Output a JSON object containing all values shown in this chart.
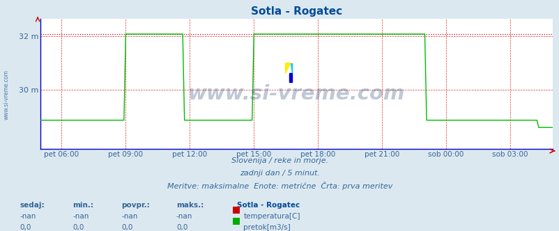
{
  "title": "Sotla - Rogatec",
  "title_color": "#004c99",
  "fig_bg": "#dce8f0",
  "plot_bg": "#ffffff",
  "grid_color": "#cc0000",
  "line_green": "#00bb00",
  "axis_color": "#0000cc",
  "tick_color": "#336699",
  "ylim": [
    27.8,
    32.65
  ],
  "xlim": [
    0,
    288
  ],
  "ytick_vals": [
    30.0,
    32.0
  ],
  "ytick_labels": [
    "30 m",
    "32 m"
  ],
  "xtick_pos": [
    12,
    48,
    84,
    120,
    156,
    192,
    228,
    264
  ],
  "xtick_labels": [
    "pet 06:00",
    "pet 09:00",
    "pet 12:00",
    "pet 15:00",
    "pet 18:00",
    "pet 21:00",
    "sob 00:00",
    "sob 03:00"
  ],
  "green_base": 28.87,
  "green_high": 32.07,
  "green_end": 28.6,
  "spike1_start": 48,
  "spike1_end": 80,
  "spike2_start": 120,
  "spike2_end": 192,
  "spike3_start": 192,
  "spike3_end": 216,
  "drop_start": 280,
  "watermark": "www.si-vreme.com",
  "watermark_color": "#1a3a6a",
  "watermark_alpha": 0.28,
  "side_label": "www.si-vreme.com",
  "side_label_color": "#5577aa",
  "sub1": "Slovenija / reke in morje.",
  "sub2": "zadnji dan / 5 minut.",
  "sub3": "Meritve: maksimalne  Enote: metrične  Črta: prva meritev",
  "sub_color": "#336699",
  "tbl_headers": [
    "sedaj:",
    "min.:",
    "povpr.:",
    "maks.:"
  ],
  "tbl_r1": [
    "-nan",
    "-nan",
    "-nan",
    "-nan"
  ],
  "tbl_r2": [
    "0,0",
    "0,0",
    "0,0",
    "0,0"
  ],
  "tbl_color": "#336699",
  "leg_title": "Sotla - Rogatec",
  "leg_color": "#004c99",
  "leg_labels": [
    "temperatura[C]",
    "pretok[m3/s]"
  ],
  "leg_colors": [
    "#cc0000",
    "#00aa00"
  ]
}
